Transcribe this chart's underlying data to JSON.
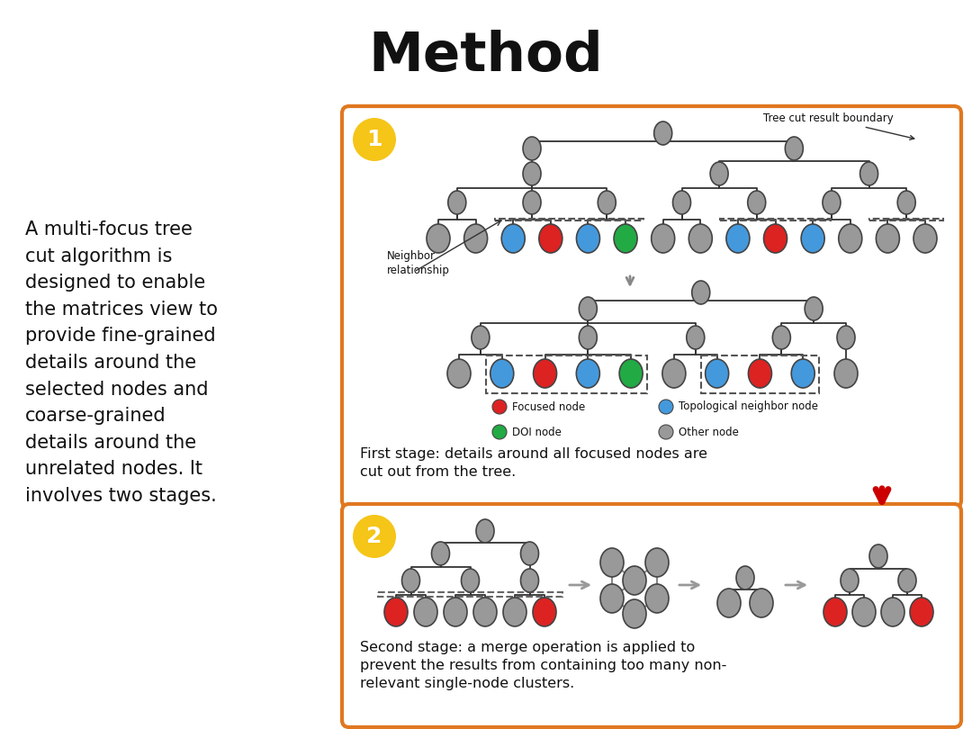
{
  "title": "Method",
  "title_fontsize": 44,
  "title_fontweight": "bold",
  "bg_color": "#ffffff",
  "orange_border": "#E07820",
  "yellow_circle": "#F5C518",
  "left_text_lines": [
    "A multi-focus tree",
    "cut algorithm is",
    "designed to enable",
    "the matrices view to",
    "provide fine-grained",
    "details around the",
    "selected nodes and",
    "coarse-grained",
    "details around the",
    "unrelated nodes. It",
    "involves two stages."
  ],
  "stage1_caption": "First stage: details around all focused nodes are\ncut out from the tree.",
  "stage2_caption": "Second stage: a merge operation is applied to\nprevent the results from containing too many non-\nrelevant single-node clusters.",
  "node_colors": {
    "focused": "#DD2222",
    "topological": "#4499DD",
    "doi": "#22AA44",
    "other": "#999999"
  },
  "legend_items": [
    {
      "label": "Focused node",
      "color": "#DD2222"
    },
    {
      "label": "Topological neighbor node",
      "color": "#4499DD"
    },
    {
      "label": "DOI node",
      "color": "#22AA44"
    },
    {
      "label": "Other node",
      "color": "#999999"
    }
  ]
}
